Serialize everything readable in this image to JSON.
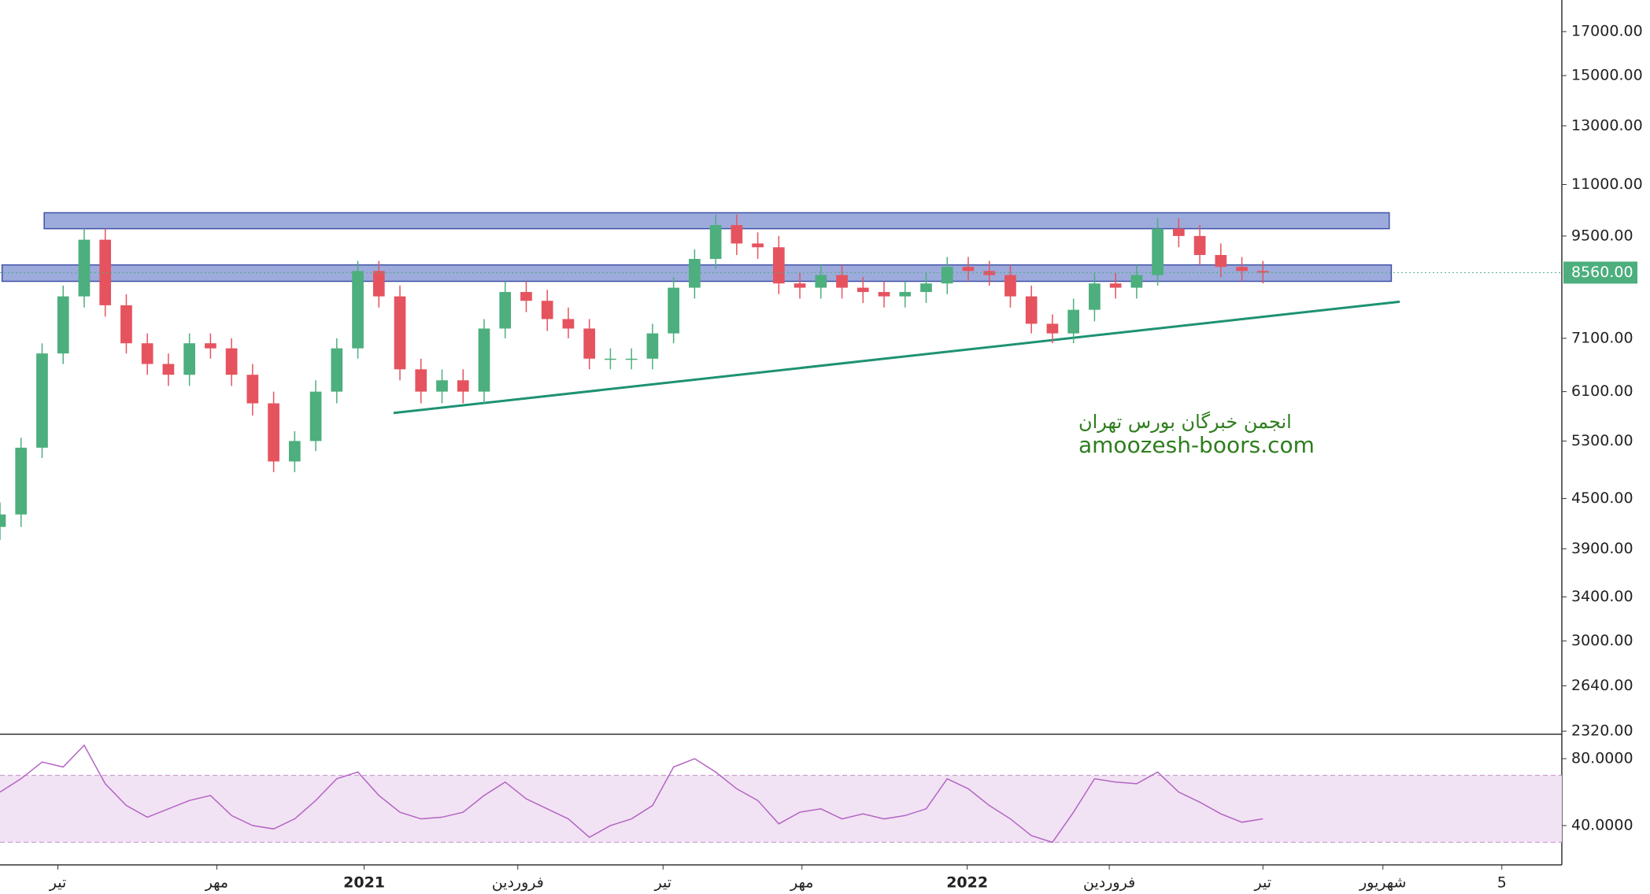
{
  "chart_data": [
    {
      "type": "candlestick",
      "log_scale": true,
      "x": [
        0,
        1,
        2,
        3,
        4,
        5,
        6,
        7,
        8,
        9,
        10,
        11,
        12,
        13,
        14,
        15,
        16,
        17,
        18,
        19,
        20,
        21,
        22,
        23,
        24,
        25,
        26,
        27,
        28,
        29,
        30,
        31,
        32,
        33,
        34,
        35,
        36,
        37,
        38,
        39,
        40,
        41,
        42,
        43,
        44,
        45,
        46,
        47,
        48,
        49,
        50,
        51,
        52,
        53,
        54,
        55,
        56,
        57,
        58,
        59,
        60
      ],
      "open": [
        4150,
        4300,
        5200,
        6800,
        8000,
        9400,
        7800,
        7000,
        6600,
        6400,
        7000,
        6900,
        6400,
        5900,
        5000,
        5300,
        6100,
        6900,
        8600,
        8000,
        6500,
        6100,
        6300,
        6100,
        7300,
        8100,
        7900,
        7500,
        7300,
        6700,
        6700,
        6700,
        7200,
        8200,
        8900,
        9800,
        9300,
        9200,
        8300,
        8200,
        8500,
        8200,
        8100,
        8000,
        8100,
        8300,
        8700,
        8600,
        8500,
        8000,
        7400,
        7200,
        7700,
        8300,
        8200,
        8500,
        9700,
        9500,
        9000,
        8700,
        8600
      ],
      "high": [
        4450,
        5350,
        7000,
        8250,
        9700,
        9700,
        8050,
        7200,
        6800,
        7200,
        7200,
        7100,
        6600,
        6100,
        5450,
        6300,
        7100,
        8850,
        8850,
        8250,
        6700,
        6500,
        6500,
        7500,
        8350,
        8350,
        8150,
        7750,
        7500,
        6900,
        6900,
        7400,
        8450,
        9150,
        10100,
        10100,
        9600,
        9500,
        8550,
        8750,
        8750,
        8450,
        8350,
        8350,
        8550,
        8950,
        8950,
        8850,
        8750,
        8250,
        7600,
        7950,
        8550,
        8550,
        8750,
        10000,
        10000,
        9800,
        9300,
        8950,
        8850
      ],
      "low": [
        4000,
        4150,
        5050,
        6600,
        7750,
        7550,
        6800,
        6400,
        6200,
        6200,
        6700,
        6200,
        5700,
        4850,
        4850,
        5150,
        5900,
        6700,
        7750,
        6300,
        5900,
        5900,
        5900,
        5900,
        7100,
        7650,
        7250,
        7100,
        6500,
        6500,
        6500,
        6500,
        7000,
        7950,
        8650,
        9000,
        8900,
        8050,
        7950,
        7950,
        7950,
        7850,
        7750,
        7750,
        7850,
        8050,
        8350,
        8250,
        7750,
        7200,
        7000,
        7000,
        7450,
        7950,
        7950,
        8250,
        9200,
        8750,
        8450,
        8350,
        8300
      ],
      "close": [
        4300,
        5200,
        6800,
        8000,
        9400,
        7800,
        7000,
        6600,
        6400,
        7000,
        6900,
        6400,
        5900,
        5000,
        5300,
        6100,
        6900,
        8600,
        8000,
        6500,
        6100,
        6300,
        6100,
        7300,
        8100,
        7900,
        7500,
        7300,
        6700,
        6700,
        6700,
        7200,
        8200,
        8900,
        9800,
        9300,
        9200,
        8300,
        8200,
        8500,
        8200,
        8100,
        8000,
        8100,
        8300,
        8700,
        8600,
        8500,
        8000,
        7400,
        7200,
        7700,
        8300,
        8200,
        8500,
        9700,
        9500,
        9000,
        8700,
        8600,
        8560
      ],
      "up_color": "#4caf7d",
      "down_color": "#e5535f",
      "xlim": [
        0,
        74.2
      ],
      "ylim": [
        2300,
        18600
      ],
      "yticks": [
        {
          "value": 17000,
          "label": "17000.00"
        },
        {
          "value": 15000,
          "label": "15000.00"
        },
        {
          "value": 13000,
          "label": "13000.00"
        },
        {
          "value": 11000,
          "label": "11000.00"
        },
        {
          "value": 9500,
          "label": "9500.00"
        },
        {
          "value": 7100,
          "label": "7100.00"
        },
        {
          "value": 6100,
          "label": "6100.00"
        },
        {
          "value": 5300,
          "label": "5300.00"
        },
        {
          "value": 4500,
          "label": "4500.00"
        },
        {
          "value": 3900,
          "label": "3900.00"
        },
        {
          "value": 3400,
          "label": "3400.00"
        },
        {
          "value": 3000,
          "label": "3000.00"
        },
        {
          "value": 2640,
          "label": "2640.00"
        },
        {
          "value": 2320,
          "label": "2320.00"
        }
      ],
      "zones": [
        {
          "low": 9700,
          "high": 10150,
          "x_start": 2.1,
          "x_end": 66
        },
        {
          "low": 8350,
          "high": 8750,
          "x_start": 0.1,
          "x_end": 66.1
        }
      ],
      "zone_color": "#7b8fcf",
      "trendline": {
        "x": [
          18.7,
          66.5
        ],
        "y": [
          5740,
          7880
        ],
        "color": "#1e9273"
      },
      "last_price": {
        "value": 8560,
        "label": "8560.00"
      },
      "annotations": [
        "انجمن خبرگان بورس تهران",
        "amoozesh-boors.com"
      ]
    },
    {
      "type": "line",
      "x": [
        0,
        1,
        2,
        3,
        4,
        5,
        6,
        7,
        8,
        9,
        10,
        11,
        12,
        13,
        14,
        15,
        16,
        17,
        18,
        19,
        20,
        21,
        22,
        23,
        24,
        25,
        26,
        27,
        28,
        29,
        30,
        31,
        32,
        33,
        34,
        35,
        36,
        37,
        38,
        39,
        40,
        41,
        42,
        43,
        44,
        45,
        46,
        47,
        48,
        49,
        50,
        51,
        52,
        53,
        54,
        55,
        56,
        57,
        58,
        59,
        60
      ],
      "values": [
        60,
        68,
        78,
        75,
        88,
        65,
        52,
        45,
        50,
        55,
        58,
        46,
        40,
        38,
        44,
        55,
        68,
        72,
        58,
        48,
        44,
        45,
        48,
        58,
        66,
        56,
        50,
        44,
        33,
        40,
        44,
        52,
        75,
        80,
        72,
        62,
        55,
        41,
        48,
        50,
        44,
        47,
        44,
        46,
        50,
        68,
        62,
        52,
        44,
        34,
        30,
        48,
        68,
        66,
        65,
        72,
        60,
        54,
        47,
        42,
        44
      ],
      "color": "#b464c4",
      "bands": [
        30,
        70
      ],
      "band_fill": "#f1e3f3",
      "xlim": [
        0,
        74.2
      ],
      "ylim": [
        16.5,
        94.6
      ],
      "yticks": [
        {
          "value": 80,
          "label": "80.0000"
        },
        {
          "value": 40,
          "label": "40.0000"
        }
      ],
      "xticks": [
        {
          "value": 2.75,
          "label": "تیر"
        },
        {
          "value": 10.3,
          "label": "مهر"
        },
        {
          "value": 17.3,
          "label": "2021"
        },
        {
          "value": 24.6,
          "label": "فروردین"
        },
        {
          "value": 31.5,
          "label": "تیر"
        },
        {
          "value": 38.1,
          "label": "مهر"
        },
        {
          "value": 45.95,
          "label": "2022"
        },
        {
          "value": 52.7,
          "label": "فروردین"
        },
        {
          "value": 60,
          "label": "تیر"
        },
        {
          "value": 65.7,
          "label": "شهریور"
        },
        {
          "value": 71.35,
          "label": "5"
        }
      ]
    }
  ]
}
